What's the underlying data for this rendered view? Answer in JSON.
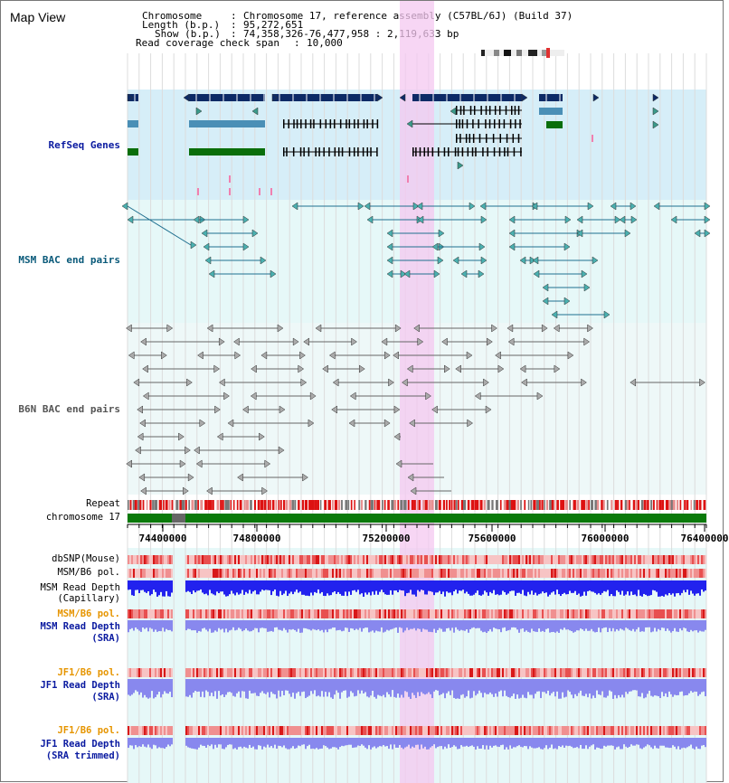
{
  "header": {
    "title": "Map View",
    "info": [
      {
        "label": "Chromosome",
        "value": "Chromosome 17, reference assembly (C57BL/6J) (Build 37)"
      },
      {
        "label": "Length (b.p.)",
        "value": "95,272,651"
      },
      {
        "label": "Show (b.p.)",
        "value": "74,358,326-76,477,958 : 2,119,633 bp"
      },
      {
        "label": "Read coverage check span",
        "value": "10,000"
      }
    ]
  },
  "tracks": {
    "refseq": "RefSeq Genes",
    "msm_bac": "MSM BAC end pairs",
    "b6n_bac": "B6N BAC end pairs",
    "repeat": "Repeat",
    "chromosome": "chromosome 17",
    "dbsnp": "dbSNP(Mouse)",
    "msm_b6_pol": "MSM/B6 pol.",
    "msm_depth_cap": [
      "MSM Read Depth",
      "(Capillary)"
    ],
    "msm_b6_pol_2": "MSM/B6 pol.",
    "msm_depth_sra": [
      "MSM Read Depth",
      "(SRA)"
    ],
    "jf1_b6_pol": "JF1/B6 pol.",
    "jf1_depth_sra": [
      "JF1 Read Depth",
      "(SRA)"
    ],
    "jf1_b6_pol_2": "JF1/B6 pol.",
    "jf1_depth_trim": [
      "JF1 Read Depth",
      "(SRA trimmed)"
    ]
  },
  "axis": {
    "ticks": [
      "74400000",
      "74800000",
      "75200000",
      "75600000",
      "76000000",
      "76400000"
    ]
  },
  "colors": {
    "refseq_bg": "#d6eef8",
    "msm_bg": "#e6f8f8",
    "b6n_bg": "#eef8f8",
    "highlight": "#f4c8f0",
    "gene_navy": "#0d2a66",
    "gene_steel": "#4a8fb6",
    "gene_green": "#0a6e0a",
    "msm_line": "#1f6f8f",
    "b6n_line": "#666666",
    "repeat_red": "#dd1111",
    "chrom_green": "#0a7a0a",
    "depth_blue": "#2222ee",
    "depth_light": "#8888ee",
    "pol_orange": "#e69500",
    "label_blue": "#0a1aa0",
    "label_teal": "#0a5a7a"
  }
}
